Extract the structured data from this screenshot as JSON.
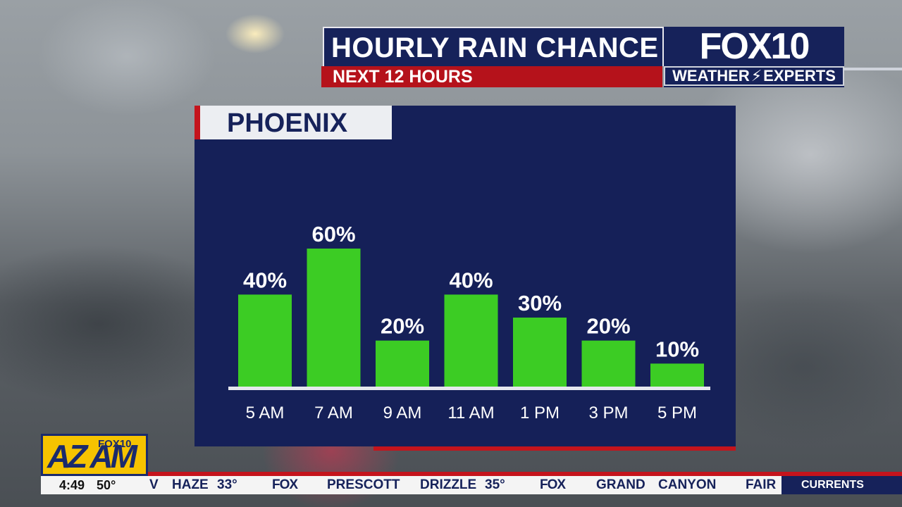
{
  "header": {
    "title": "HOURLY RAIN CHANCE",
    "subtitle": "NEXT 12 HOURS",
    "logo_main": "FOX10",
    "logo_sub_left": "WEATHER",
    "logo_sub_right": "EXPERTS"
  },
  "panel": {
    "city": "PHOENIX"
  },
  "chart_data": {
    "type": "bar",
    "title": "",
    "xlabel": "",
    "ylabel": "",
    "unit": "%",
    "ylim": [
      0,
      60
    ],
    "grid": false,
    "categories": [
      "5 AM",
      "7 AM",
      "9 AM",
      "11 AM",
      "1 PM",
      "3 PM",
      "5 PM"
    ],
    "values": [
      40,
      60,
      20,
      40,
      30,
      20,
      10
    ],
    "value_labels": [
      "40%",
      "60%",
      "20%",
      "40%",
      "30%",
      "20%",
      "10%"
    ],
    "bar_color": "#3ccc24"
  },
  "branding": {
    "show_logo": "AZ AM",
    "show_logo_sub": "FOX10"
  },
  "ticker": {
    "time": "4:49",
    "temp": "50°",
    "items": [
      {
        "text": "V"
      },
      {
        "text": "HAZE"
      },
      {
        "text": "33°"
      },
      {
        "text": "FOX"
      },
      {
        "text": "PRESCOTT"
      },
      {
        "text": "DRIZZLE"
      },
      {
        "text": "35°"
      },
      {
        "text": "FOX"
      },
      {
        "text": "GRAND"
      },
      {
        "text": "CANYON"
      },
      {
        "text": "FAIR"
      }
    ],
    "segment_label": "CURRENTS"
  }
}
